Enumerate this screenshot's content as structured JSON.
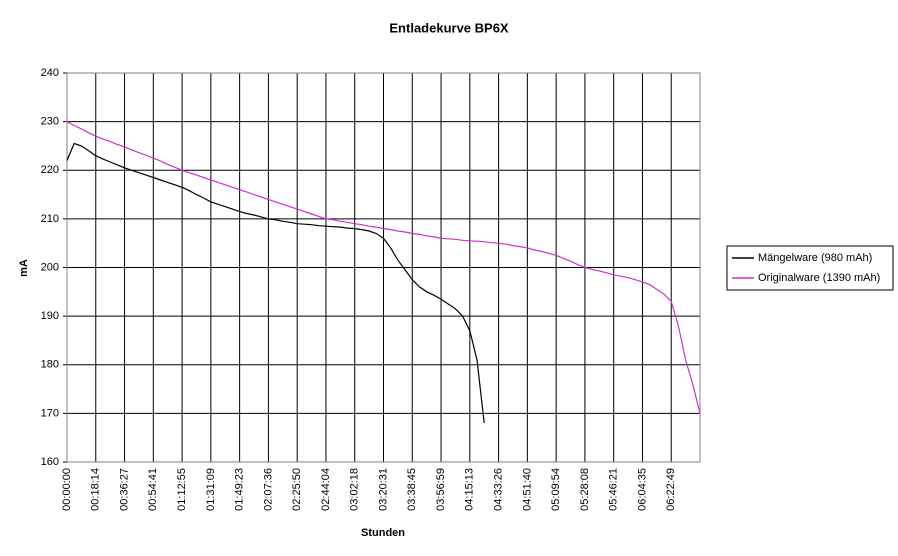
{
  "chart_data": {
    "type": "line",
    "title": "Entladekurve BP6X",
    "x_label": "Stunden",
    "y_label": "mA",
    "categories": [
      "00:00:00",
      null,
      null,
      null,
      "00:18:14",
      null,
      null,
      null,
      "00:36:27",
      null,
      null,
      null,
      "00:54:41",
      null,
      null,
      null,
      "01:12:55",
      null,
      null,
      null,
      "01:31:09",
      null,
      null,
      null,
      "01:49:23",
      null,
      null,
      null,
      "02:07:36",
      null,
      null,
      null,
      "02:25:50",
      null,
      null,
      null,
      "02:44:04",
      null,
      null,
      null,
      "03:02:18",
      null,
      null,
      null,
      "03:20:31",
      null,
      null,
      null,
      "03:38:45",
      null,
      null,
      null,
      "03:56:59",
      null,
      null,
      null,
      "04:15:13",
      null,
      null,
      null,
      "04:33:26",
      null,
      null,
      null,
      "04:51:40",
      null,
      null,
      null,
      "05:09:54",
      null,
      null,
      null,
      "05:28:08",
      null,
      null,
      null,
      "05:46:21",
      null,
      null,
      null,
      "06:04:35",
      null,
      null,
      null,
      "06:22:49",
      null,
      null,
      null,
      null
    ],
    "series": [
      {
        "name": "Mängelware (980 mAh)",
        "color": "#000000",
        "values": [
          222,
          225.5,
          225,
          224,
          223,
          222.3,
          221.7,
          221.1,
          220.5,
          220,
          219.5,
          219,
          218.5,
          218,
          217.5,
          217,
          216.5,
          215.8,
          215,
          214.3,
          213.5,
          213,
          212.5,
          212,
          211.5,
          211.1,
          210.8,
          210.4,
          210,
          209.8,
          209.5,
          209.3,
          209,
          208.9,
          208.8,
          208.6,
          208.5,
          208.4,
          208.3,
          208.1,
          208,
          207.8,
          207.5,
          207,
          206,
          204,
          201.5,
          199.5,
          197.5,
          196,
          195,
          194.3,
          193.5,
          192.5,
          191.5,
          190,
          187,
          181,
          168,
          null,
          null,
          null,
          null,
          null,
          null,
          null,
          null,
          null,
          null,
          null,
          null,
          null,
          null,
          null,
          null,
          null,
          null,
          null,
          null,
          null,
          null,
          null,
          null,
          null,
          null,
          null,
          null,
          null,
          null
        ]
      },
      {
        "name": "Originalware (1390 mAh)",
        "color": "#cc33cc",
        "values": [
          230,
          229.2,
          228.5,
          227.7,
          227,
          226.4,
          225.9,
          225.3,
          224.8,
          224.2,
          223.6,
          223.1,
          222.5,
          221.9,
          221.2,
          220.6,
          220,
          219.5,
          219,
          218.5,
          218,
          217.5,
          217,
          216.5,
          216,
          215.5,
          215,
          214.5,
          214,
          213.5,
          213,
          212.5,
          212,
          211.5,
          211,
          210.5,
          210,
          209.8,
          209.5,
          209.3,
          209,
          208.8,
          208.5,
          208.3,
          208,
          207.8,
          207.5,
          207.3,
          207,
          206.8,
          206.5,
          206.3,
          206,
          205.9,
          205.8,
          205.6,
          205.5,
          205.4,
          205.3,
          205.1,
          205,
          204.8,
          204.5,
          204.3,
          204,
          203.6,
          203.3,
          202.9,
          202.5,
          201.9,
          201.3,
          200.6,
          200,
          199.6,
          199.3,
          198.9,
          198.5,
          198.2,
          197.9,
          197.5,
          197,
          196.5,
          195.5,
          194.5,
          193,
          188,
          181,
          176,
          170
        ]
      }
    ],
    "ylim": [
      160,
      240
    ],
    "yticks": [
      160,
      170,
      180,
      190,
      200,
      210,
      220,
      230,
      240
    ],
    "grid": true,
    "legend": "right"
  }
}
